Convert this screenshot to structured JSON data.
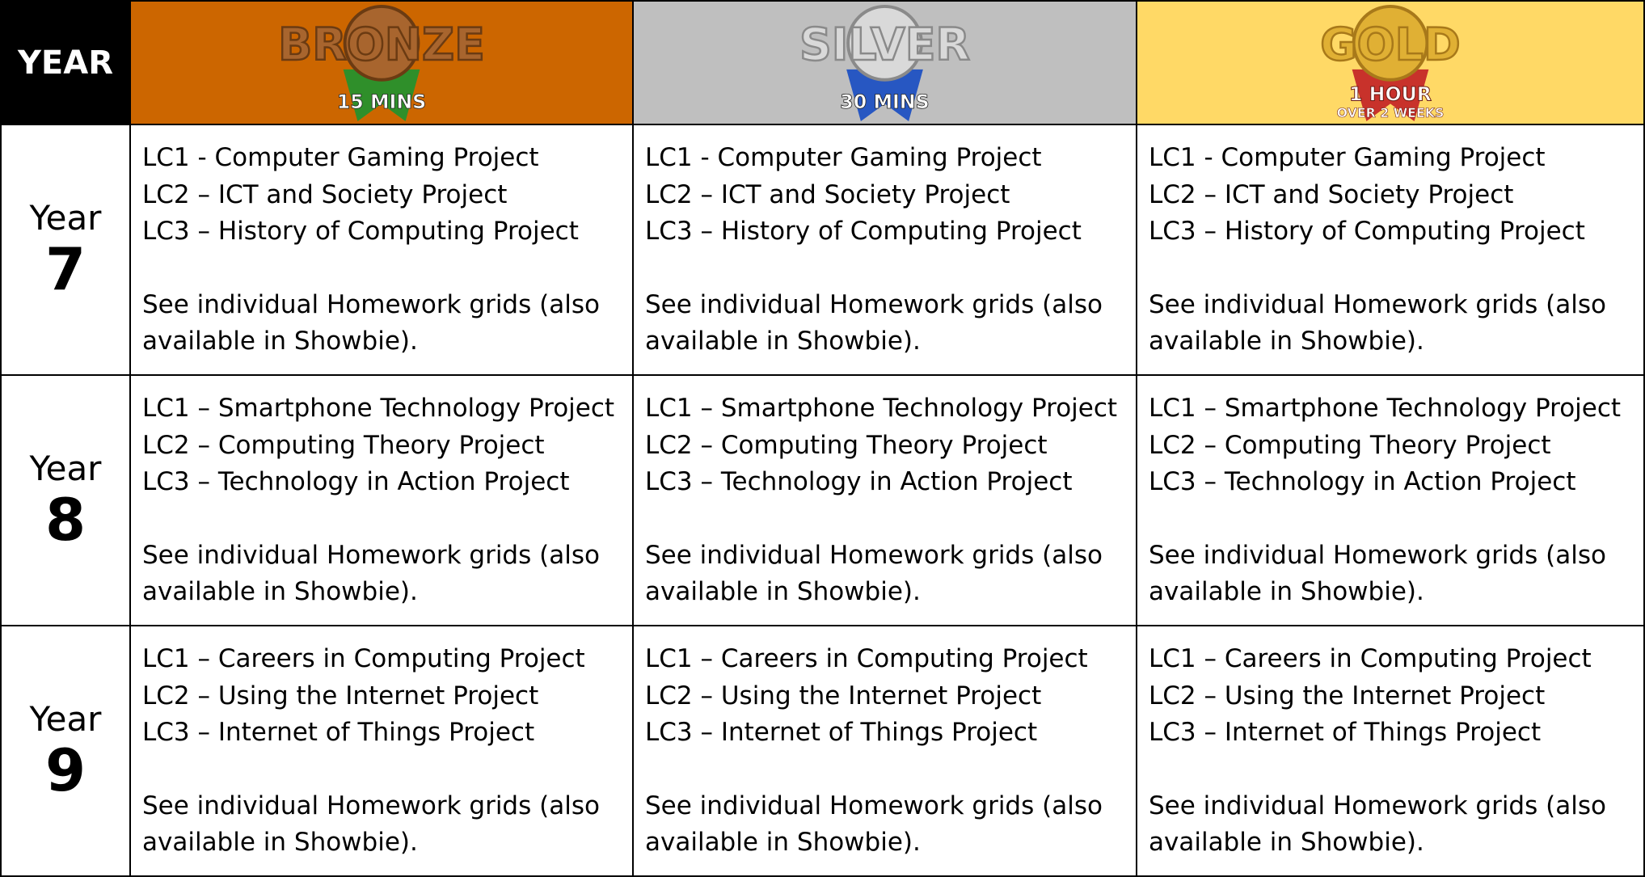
{
  "header": {
    "year": "YEAR",
    "columns": [
      {
        "title": "BRONZE",
        "subtitle": "15 MINS"
      },
      {
        "title": "SILVER",
        "subtitle": "30 MINS"
      },
      {
        "title": "GOLD",
        "subtitle": "1 HOUR",
        "subtitle2": "OVER 2 WEEKS"
      }
    ]
  },
  "rows": [
    {
      "label": "Year",
      "number": "7",
      "cells": [
        {
          "lines": [
            "LC1 - Computer Gaming Project",
            "LC2 – ICT and Society Project",
            "LC3 – History of Computing Project"
          ],
          "note": "See individual Homework grids (also available in Showbie)."
        },
        {
          "lines": [
            "LC1 - Computer Gaming Project",
            "LC2 – ICT and Society Project",
            "LC3 – History of Computing Project"
          ],
          "note": "See individual Homework grids (also available in Showbie)."
        },
        {
          "lines": [
            "LC1 - Computer Gaming Project",
            "LC2 – ICT and Society Project",
            "LC3 – History of Computing Project"
          ],
          "note": "See individual Homework grids (also available in Showbie)."
        }
      ]
    },
    {
      "label": "Year",
      "number": "8",
      "cells": [
        {
          "lines": [
            "LC1 – Smartphone Technology Project",
            "LC2 – Computing Theory Project",
            "LC3 – Technology in Action Project"
          ],
          "note": "See individual Homework grids (also available in Showbie)."
        },
        {
          "lines": [
            "LC1 – Smartphone Technology Project",
            "LC2 – Computing Theory Project",
            "LC3 – Technology in Action Project"
          ],
          "note": "See individual Homework grids (also available in Showbie)."
        },
        {
          "lines": [
            "LC1 – Smartphone Technology Project",
            "LC2 – Computing Theory Project",
            "LC3 – Technology in Action Project"
          ],
          "note": "See individual Homework grids (also available in Showbie)."
        }
      ]
    },
    {
      "label": "Year",
      "number": "9",
      "cells": [
        {
          "lines": [
            "LC1 – Careers in Computing Project",
            "LC2 – Using the Internet Project",
            "LC3 – Internet of Things Project"
          ],
          "note": "See individual Homework grids (also available in Showbie)."
        },
        {
          "lines": [
            "LC1 – Careers in Computing Project",
            "LC2 – Using the Internet Project",
            "LC3 – Internet of Things Project"
          ],
          "note": "See individual Homework grids (also available in Showbie)."
        },
        {
          "lines": [
            "LC1 – Careers in Computing Project",
            "LC2 – Using the Internet Project",
            "LC3 – Internet of Things Project"
          ],
          "note": "See individual Homework grids (also available in Showbie)."
        }
      ]
    }
  ]
}
